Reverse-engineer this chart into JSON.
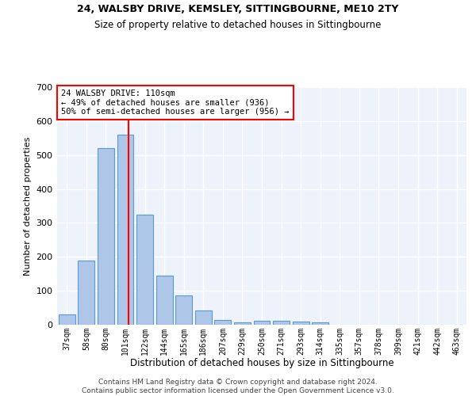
{
  "title1": "24, WALSBY DRIVE, KEMSLEY, SITTINGBOURNE, ME10 2TY",
  "title2": "Size of property relative to detached houses in Sittingbourne",
  "xlabel": "Distribution of detached houses by size in Sittingbourne",
  "ylabel": "Number of detached properties",
  "categories": [
    "37sqm",
    "58sqm",
    "80sqm",
    "101sqm",
    "122sqm",
    "144sqm",
    "165sqm",
    "186sqm",
    "207sqm",
    "229sqm",
    "250sqm",
    "271sqm",
    "293sqm",
    "314sqm",
    "335sqm",
    "357sqm",
    "378sqm",
    "399sqm",
    "421sqm",
    "442sqm",
    "463sqm"
  ],
  "values": [
    30,
    190,
    520,
    560,
    325,
    145,
    87,
    42,
    13,
    8,
    12,
    11,
    10,
    7,
    0,
    0,
    0,
    0,
    0,
    0,
    0
  ],
  "bar_color": "#aec6e8",
  "bar_edge_color": "#5b9bd5",
  "bg_color": "#eef3fb",
  "grid_color": "#ffffff",
  "red_line_x": 3.15,
  "annotation_text": "24 WALSBY DRIVE: 110sqm\n← 49% of detached houses are smaller (936)\n50% of semi-detached houses are larger (956) →",
  "footer1": "Contains HM Land Registry data © Crown copyright and database right 2024.",
  "footer2": "Contains public sector information licensed under the Open Government Licence v3.0.",
  "ylim": [
    0,
    700
  ],
  "yticks": [
    0,
    100,
    200,
    300,
    400,
    500,
    600,
    700
  ]
}
